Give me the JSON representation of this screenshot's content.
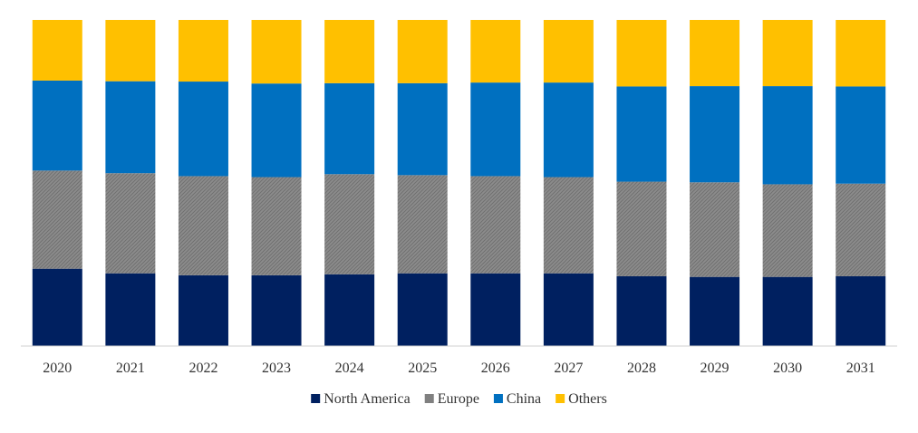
{
  "chart_data": {
    "type": "bar",
    "stacked": true,
    "percent_stacked": true,
    "title": "",
    "xlabel": "",
    "ylabel": "",
    "ylim": [
      0,
      100
    ],
    "grid": false,
    "legend_position": "bottom-center",
    "categories": [
      "2020",
      "2021",
      "2022",
      "2023",
      "2024",
      "2025",
      "2026",
      "2027",
      "2028",
      "2029",
      "2030",
      "2031"
    ],
    "series": [
      {
        "name": "North America",
        "color": "#002060",
        "pattern": "solid",
        "values": [
          23.7,
          22.3,
          21.7,
          21.7,
          22.0,
          22.3,
          22.3,
          22.3,
          21.4,
          21.2,
          21.2,
          21.4
        ]
      },
      {
        "name": "Europe",
        "color": "#808080",
        "pattern": "hatched",
        "values": [
          30.1,
          30.7,
          30.4,
          30.1,
          30.7,
          30.1,
          29.8,
          29.5,
          29.0,
          29.0,
          28.4,
          28.4
        ]
      },
      {
        "name": "China",
        "color": "#0070C0",
        "pattern": "solid",
        "values": [
          27.6,
          28.2,
          29.0,
          28.7,
          27.9,
          28.2,
          28.7,
          29.0,
          29.2,
          29.5,
          30.1,
          29.8
        ]
      },
      {
        "name": "Others",
        "color": "#FFC000",
        "pattern": "solid",
        "values": [
          18.6,
          18.8,
          18.9,
          19.5,
          19.4,
          19.4,
          19.2,
          19.2,
          20.4,
          20.3,
          20.3,
          20.4
        ]
      }
    ]
  }
}
